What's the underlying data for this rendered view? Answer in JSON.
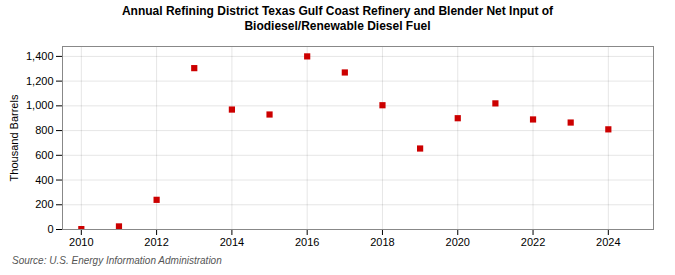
{
  "chart_data": {
    "type": "scatter",
    "title": "Annual Refining District Texas Gulf Coast Refinery and Blender Net Input of\nBiodiesel/Renewable Diesel Fuel",
    "ylabel": "Thousand Barrels",
    "annotations": [
      "Source: U.S. Energy Information Administration"
    ],
    "x": [
      2010,
      2011,
      2012,
      2013,
      2014,
      2015,
      2016,
      2017,
      2018,
      2019,
      2020,
      2021,
      2022,
      2023,
      2024
    ],
    "values": [
      3,
      25,
      240,
      1305,
      970,
      930,
      1400,
      1270,
      1005,
      655,
      900,
      1020,
      890,
      865,
      810
    ],
    "color": "#cc0000",
    "marker": "square",
    "xlim": [
      2009.5,
      2025.2
    ],
    "xticks": [
      2010,
      2012,
      2014,
      2016,
      2018,
      2020,
      2022,
      2024
    ],
    "ylim": [
      0,
      1480
    ],
    "yticks": [
      0,
      200,
      400,
      600,
      800,
      {
        "value": 1000,
        "label": "1,000"
      },
      {
        "value": 1200,
        "label": "1,200"
      },
      {
        "value": 1400,
        "label": "1,400"
      }
    ],
    "grid": true
  }
}
